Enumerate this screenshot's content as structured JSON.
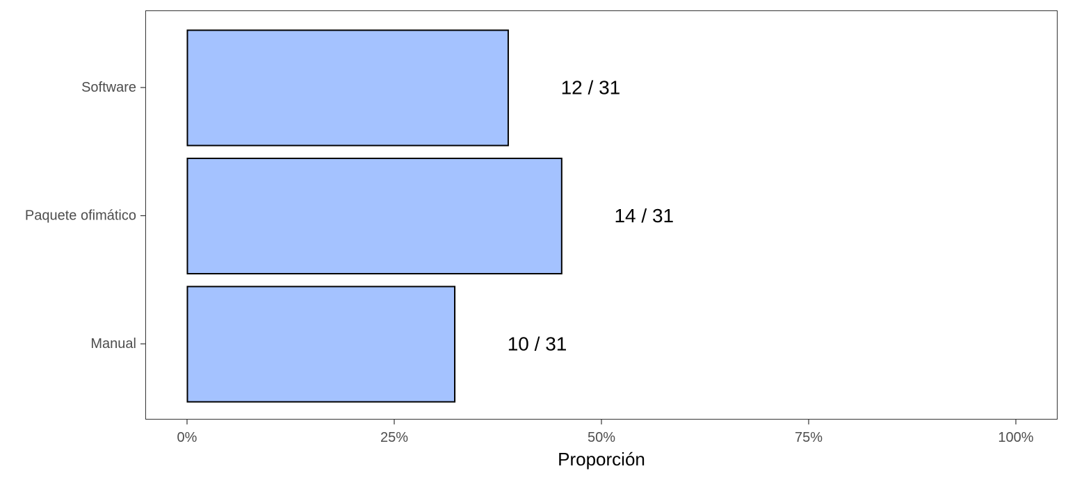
{
  "chart_data": {
    "type": "bar",
    "orientation": "horizontal",
    "categories": [
      "Manual",
      "Paquete ofimático",
      "Software"
    ],
    "values": [
      0.3226,
      0.4516,
      0.3871
    ],
    "data_labels": [
      "10 / 31",
      "14 / 31",
      "12 / 31"
    ],
    "xlabel": "Proporción",
    "ylabel": "",
    "xlim": [
      0,
      1
    ],
    "x_ticks": [
      0,
      0.25,
      0.5,
      0.75,
      1
    ],
    "x_tick_labels": [
      "0%",
      "25%",
      "50%",
      "75%",
      "100%"
    ],
    "grid": false,
    "legend": "none",
    "colors": {
      "bar_fill": "#a4c2ff",
      "bar_stroke": "#000000",
      "panel_border": "#333333",
      "tick_text": "#4d4d4d"
    }
  }
}
